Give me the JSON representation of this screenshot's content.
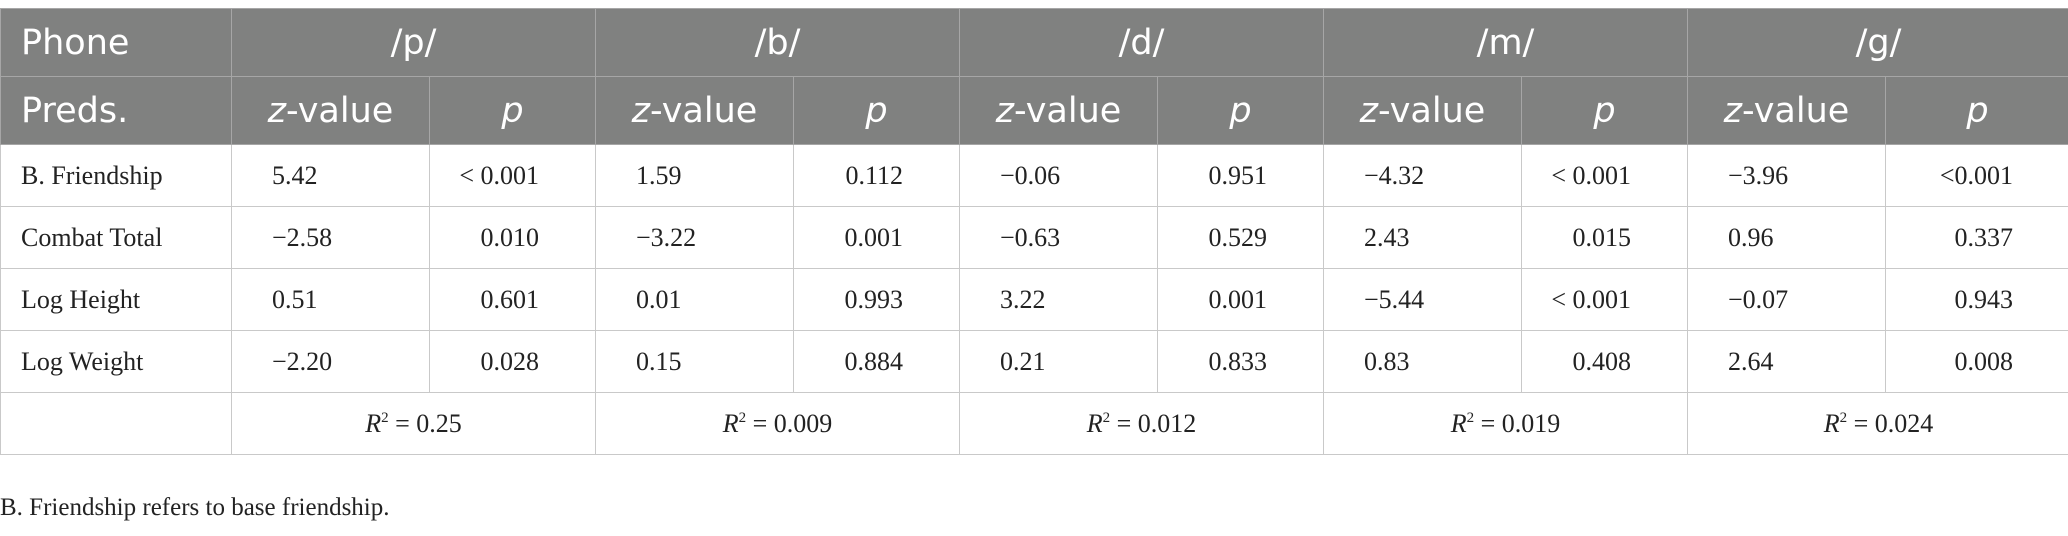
{
  "header": {
    "phone_label": "Phone",
    "preds_label": "Preds.",
    "z_label_italic": "z",
    "z_label_rest": "-value",
    "p_label": "p",
    "phones": [
      "/p/",
      "/b/",
      "/d/",
      "/m/",
      "/g/"
    ]
  },
  "rows": [
    {
      "label": "B. Friendship",
      "cells": [
        "5.42",
        "< 0.001",
        "1.59",
        "0.112",
        "−0.06",
        "0.951",
        "−4.32",
        "< 0.001",
        "−3.96",
        "<0.001"
      ]
    },
    {
      "label": "Combat Total",
      "cells": [
        "−2.58",
        "0.010",
        "−3.22",
        "0.001",
        "−0.63",
        "0.529",
        "2.43",
        "0.015",
        "0.96",
        "0.337"
      ]
    },
    {
      "label": "Log Height",
      "cells": [
        "0.51",
        "0.601",
        "0.01",
        "0.993",
        "3.22",
        "0.001",
        "−5.44",
        "< 0.001",
        "−0.07",
        "0.943"
      ]
    },
    {
      "label": "Log Weight",
      "cells": [
        "−2.20",
        "0.028",
        "0.15",
        "0.884",
        "0.21",
        "0.833",
        "0.83",
        "0.408",
        "2.64",
        "0.008"
      ]
    }
  ],
  "r2": {
    "symbol": "R",
    "superscript": "2",
    "values": [
      "= 0.25",
      "= 0.009",
      "= 0.012",
      "= 0.019",
      "= 0.024"
    ]
  },
  "footnote": "B. Friendship refers to base friendship."
}
